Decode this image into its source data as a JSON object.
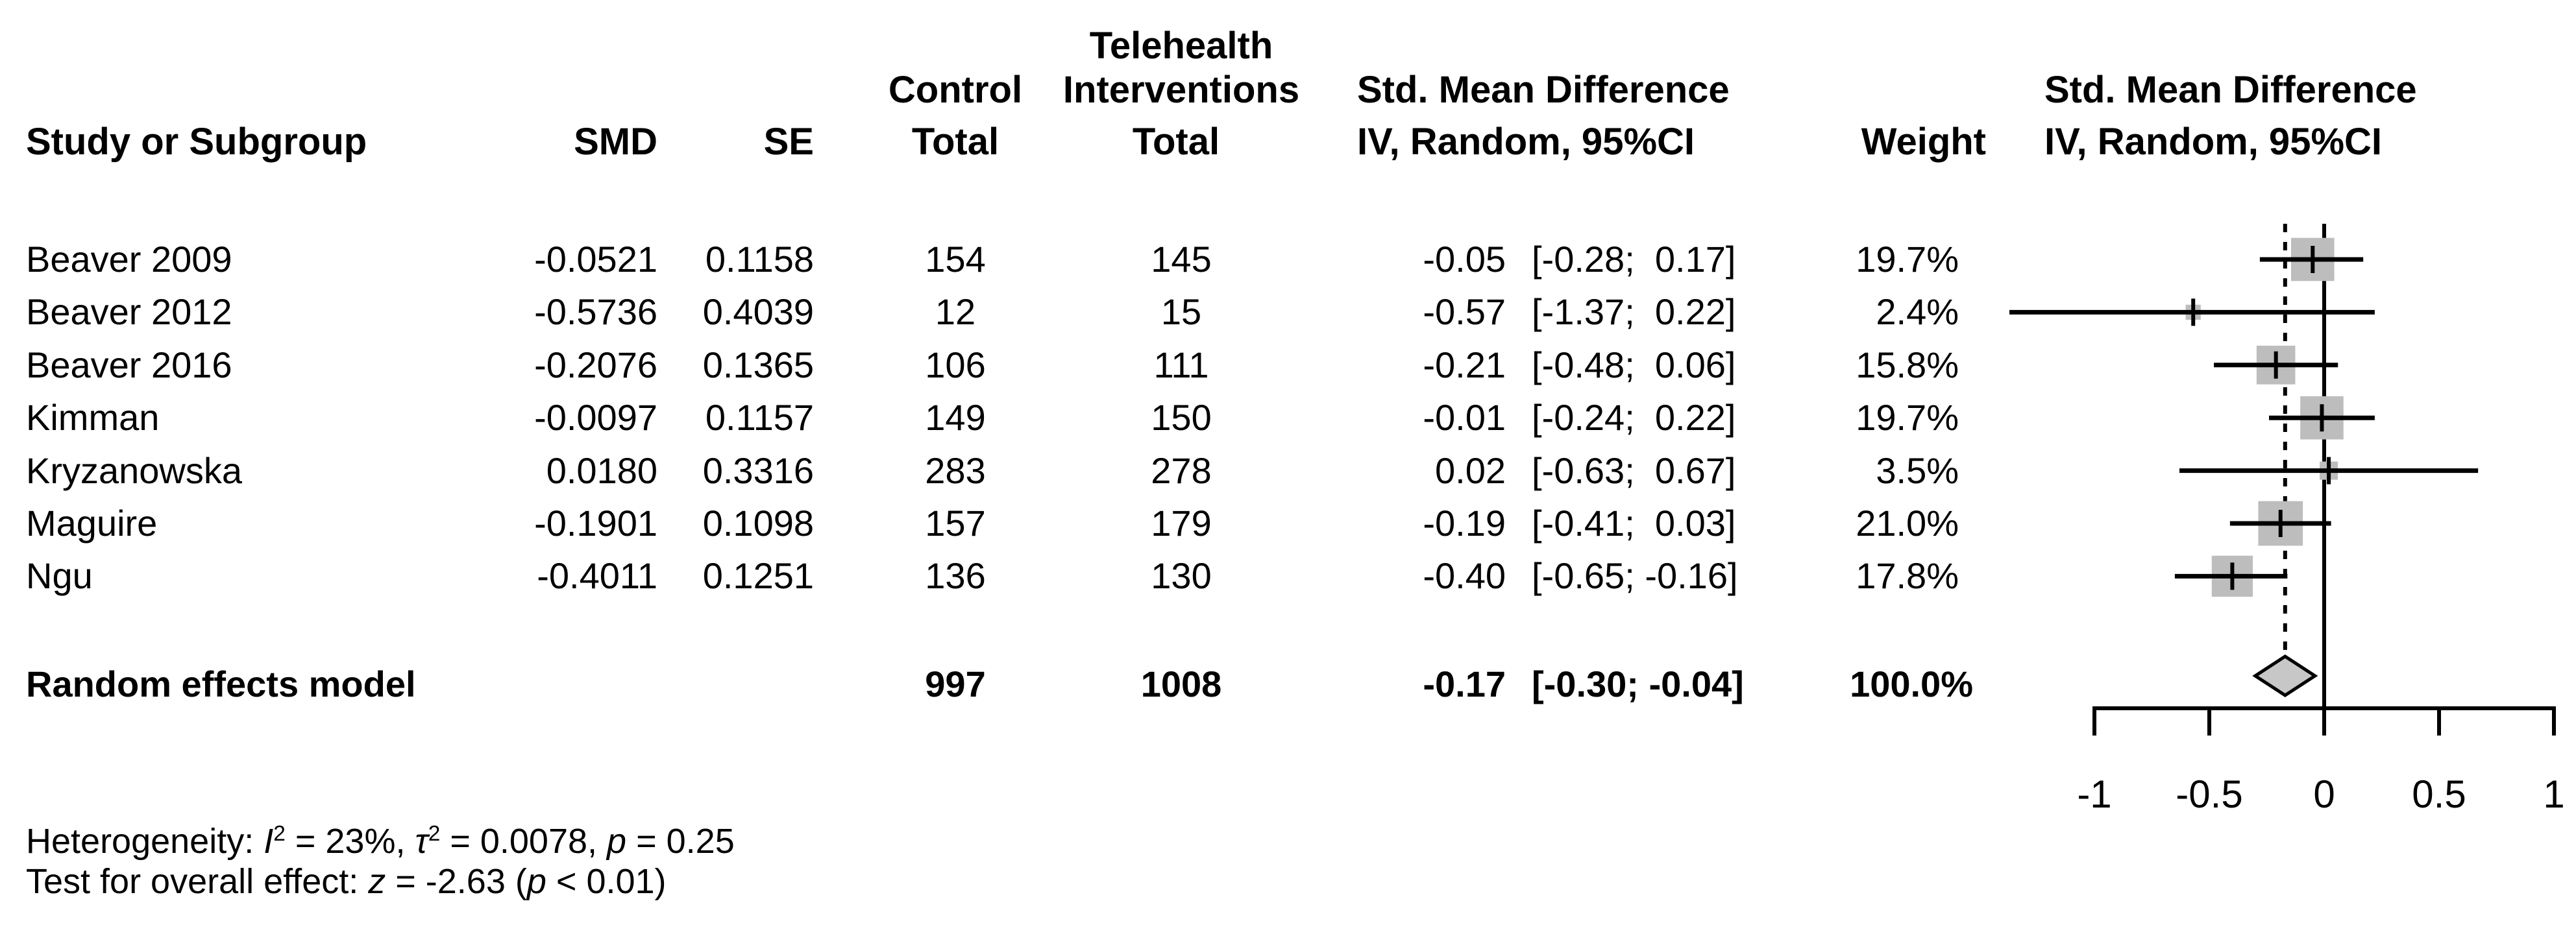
{
  "figure": {
    "header": {
      "study_col": "Study or Subgroup",
      "smd_col": "SMD",
      "se_col": "SE",
      "control_group": "Control",
      "control_total": "Total",
      "telehealth_group_line1": "Telehealth",
      "telehealth_group_line2": "Interventions",
      "telehealth_total": "Total",
      "effect_col_title": "Std. Mean Difference",
      "effect_col_sub": "IV, Random, 95%CI",
      "weight_col": "Weight",
      "plot_col_title": "Std. Mean Difference",
      "plot_col_sub": "IV, Random, 95%CI"
    },
    "footnotes": {
      "heterogeneity": [
        {
          "t": "Heterogeneity: "
        },
        {
          "t": "I",
          "i": true
        },
        {
          "t": "2",
          "sup": true
        },
        {
          "t": " = 23%, "
        },
        {
          "t": "τ",
          "i": true
        },
        {
          "t": "2",
          "sup": true
        },
        {
          "t": " = 0.0078, "
        },
        {
          "t": "p",
          "i": true
        },
        {
          "t": " = 0.25"
        }
      ],
      "overall_effect": [
        {
          "t": "Test for overall effect: "
        },
        {
          "t": "z",
          "i": true
        },
        {
          "t": " = -2.63 ("
        },
        {
          "t": "p",
          "i": true
        },
        {
          "t": " < 0.01)"
        }
      ]
    }
  },
  "chart_data": {
    "type": "forest",
    "effect_measure": "Std. Mean Difference (IV, Random, 95%CI)",
    "studies": [
      {
        "label": "Beaver 2009",
        "smd_text": "-0.0521",
        "se_text": "0.1158",
        "control_total": "154",
        "telehealth_total": "145",
        "est_text": "-0.05",
        "ci_text": "[-0.28;  0.17]",
        "weight_text": "19.7%",
        "est": -0.05,
        "lo": -0.28,
        "hi": 0.17,
        "weight": 19.7
      },
      {
        "label": "Beaver 2012",
        "smd_text": "-0.5736",
        "se_text": "0.4039",
        "control_total": "12",
        "telehealth_total": "15",
        "est_text": "-0.57",
        "ci_text": "[-1.37;  0.22]",
        "weight_text": "2.4%",
        "est": -0.57,
        "lo": -1.37,
        "hi": 0.22,
        "weight": 2.4
      },
      {
        "label": "Beaver 2016",
        "smd_text": "-0.2076",
        "se_text": "0.1365",
        "control_total": "106",
        "telehealth_total": "111",
        "est_text": "-0.21",
        "ci_text": "[-0.48;  0.06]",
        "weight_text": "15.8%",
        "est": -0.21,
        "lo": -0.48,
        "hi": 0.06,
        "weight": 15.8
      },
      {
        "label": "Kimman",
        "smd_text": "-0.0097",
        "se_text": "0.1157",
        "control_total": "149",
        "telehealth_total": "150",
        "est_text": "-0.01",
        "ci_text": "[-0.24;  0.22]",
        "weight_text": "19.7%",
        "est": -0.01,
        "lo": -0.24,
        "hi": 0.22,
        "weight": 19.7
      },
      {
        "label": "Kryzanowska",
        "smd_text": "0.0180",
        "se_text": "0.3316",
        "control_total": "283",
        "telehealth_total": "278",
        "est_text": "0.02",
        "ci_text": "[-0.63;  0.67]",
        "weight_text": "3.5%",
        "est": 0.02,
        "lo": -0.63,
        "hi": 0.67,
        "weight": 3.5
      },
      {
        "label": "Maguire",
        "smd_text": "-0.1901",
        "se_text": "0.1098",
        "control_total": "157",
        "telehealth_total": "179",
        "est_text": "-0.19",
        "ci_text": "[-0.41;  0.03]",
        "weight_text": "21.0%",
        "est": -0.19,
        "lo": -0.41,
        "hi": 0.03,
        "weight": 21.0
      },
      {
        "label": "Ngu",
        "smd_text": "-0.4011",
        "se_text": "0.1251",
        "control_total": "136",
        "telehealth_total": "130",
        "est_text": "-0.40",
        "ci_text": "[-0.65; -0.16]",
        "weight_text": "17.8%",
        "est": -0.4,
        "lo": -0.65,
        "hi": -0.16,
        "weight": 17.8
      }
    ],
    "summary": {
      "label": "Random effects model",
      "control_total": "997",
      "telehealth_total": "1008",
      "est_text": "-0.17",
      "ci_text": "[-0.30; -0.04]",
      "weight_text": "100.0%",
      "est": -0.17,
      "lo": -0.3,
      "hi": -0.04
    },
    "axis": {
      "ticks": [
        -1,
        -0.5,
        0,
        0.5,
        1
      ],
      "tick_labels": [
        "-1",
        "-0.5",
        "0",
        "0.5",
        "1"
      ],
      "xlim": [
        -1.45,
        1.1
      ],
      "zero_line": 0,
      "pooled_line": -0.17,
      "grid": false
    }
  },
  "colors": {
    "square": "#bdbdbd",
    "diamond_fill": "#c7c7c7",
    "ink": "#000000"
  }
}
